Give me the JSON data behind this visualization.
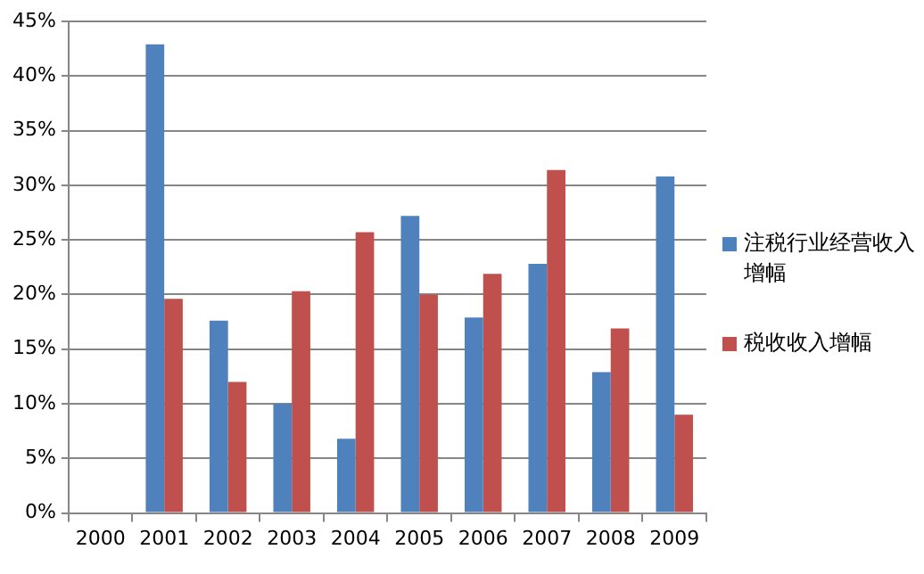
{
  "chart_data": {
    "type": "bar",
    "categories": [
      "2000",
      "2001",
      "2002",
      "2003",
      "2004",
      "2005",
      "2006",
      "2007",
      "2008",
      "2009"
    ],
    "series": [
      {
        "name": "注税行业经营收入增幅",
        "color": "#4f81bd",
        "values": [
          null,
          42.9,
          17.6,
          10.0,
          6.8,
          27.2,
          17.9,
          22.8,
          12.9,
          30.8
        ]
      },
      {
        "name": "税收收入增幅",
        "color": "#c0504d",
        "values": [
          null,
          19.6,
          12.0,
          20.3,
          25.7,
          20.0,
          21.9,
          31.4,
          16.9,
          9.0
        ]
      }
    ],
    "ylim": [
      0,
      45
    ],
    "yticks": [
      {
        "value": 0,
        "label": "0%"
      },
      {
        "value": 5,
        "label": "5%"
      },
      {
        "value": 10,
        "label": "10%"
      },
      {
        "value": 15,
        "label": "15%"
      },
      {
        "value": 20,
        "label": "20%"
      },
      {
        "value": 25,
        "label": "25%"
      },
      {
        "value": 30,
        "label": "30%"
      },
      {
        "value": 35,
        "label": "35%"
      },
      {
        "value": 40,
        "label": "40%"
      },
      {
        "value": 45,
        "label": "45%"
      }
    ],
    "grid": "y",
    "legend": "right"
  }
}
